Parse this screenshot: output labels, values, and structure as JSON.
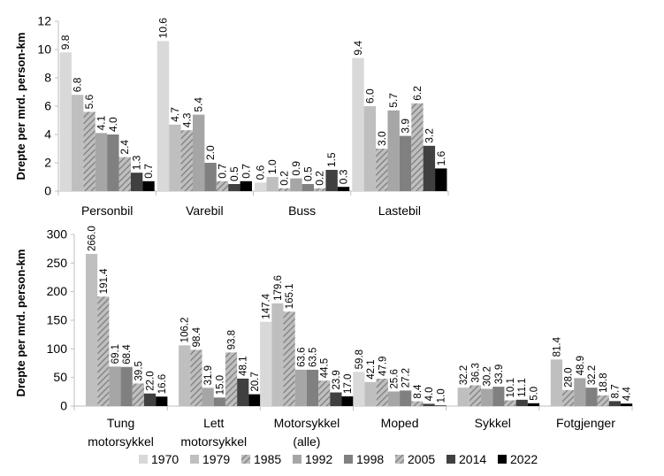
{
  "colors": {
    "series": [
      "#d9d9d9",
      "#bfbfbf",
      "#a6a6a6",
      "#a6a6a6",
      "#808080",
      "#7f7f7f",
      "#404040",
      "#000000"
    ],
    "hatched": [
      false,
      false,
      true,
      false,
      false,
      true,
      false,
      false
    ],
    "axis": "#bfbfbf"
  },
  "chart_data": [
    {
      "type": "bar",
      "ylabel": "Drepte per mrd. person-km",
      "ylim": [
        0,
        12
      ],
      "yticks": [
        0,
        2,
        4,
        6,
        8,
        10,
        12
      ],
      "grid": false,
      "categories": [
        "Personbil",
        "Varebil",
        "Buss",
        "Lastebil"
      ],
      "series": [
        {
          "name": "1970",
          "values": [
            9.8,
            10.6,
            0.6,
            9.4
          ]
        },
        {
          "name": "1979",
          "values": [
            6.8,
            4.7,
            1.0,
            6.0
          ]
        },
        {
          "name": "1985",
          "values": [
            5.6,
            4.3,
            0.2,
            3.0
          ]
        },
        {
          "name": "1992",
          "values": [
            4.1,
            5.4,
            0.9,
            5.7
          ]
        },
        {
          "name": "1998",
          "values": [
            4.0,
            2.0,
            0.5,
            3.9
          ]
        },
        {
          "name": "2005",
          "values": [
            2.4,
            0.7,
            0.2,
            6.2
          ]
        },
        {
          "name": "2014",
          "values": [
            1.3,
            0.5,
            1.5,
            3.2
          ]
        },
        {
          "name": "2022",
          "values": [
            0.7,
            0.7,
            0.3,
            1.6
          ]
        }
      ]
    },
    {
      "type": "bar",
      "ylabel": "Drepte per mrd. person-km",
      "ylim": [
        0,
        300
      ],
      "yticks": [
        0,
        50,
        100,
        150,
        200,
        250,
        300
      ],
      "grid": false,
      "legend": "bottom",
      "categories": [
        [
          "Tung",
          "motorsykkel"
        ],
        [
          "Lett",
          "motorsykkel"
        ],
        [
          "Motorsykkel",
          "(alle)"
        ],
        [
          "Moped"
        ],
        [
          "Sykkel"
        ],
        [
          "Fotgjenger"
        ]
      ],
      "series": [
        {
          "name": "1970",
          "values": [
            null,
            null,
            147.4,
            59.8,
            null,
            null
          ]
        },
        {
          "name": "1979",
          "values": [
            266.0,
            106.2,
            179.6,
            42.1,
            32.2,
            81.4
          ]
        },
        {
          "name": "1985",
          "values": [
            191.4,
            98.4,
            165.1,
            47.9,
            36.3,
            28.0
          ]
        },
        {
          "name": "1992",
          "values": [
            69.1,
            31.9,
            63.6,
            25.6,
            30.2,
            48.9
          ]
        },
        {
          "name": "1998",
          "values": [
            68.4,
            15.0,
            63.5,
            27.2,
            33.9,
            32.2
          ]
        },
        {
          "name": "2005",
          "values": [
            39.5,
            93.8,
            44.5,
            8.4,
            10.1,
            18.8
          ]
        },
        {
          "name": "2014",
          "values": [
            22.0,
            48.1,
            23.9,
            4.0,
            11.1,
            8.7
          ]
        },
        {
          "name": "2022",
          "values": [
            16.6,
            20.7,
            17.0,
            1.0,
            5.0,
            4.4
          ]
        }
      ]
    }
  ]
}
